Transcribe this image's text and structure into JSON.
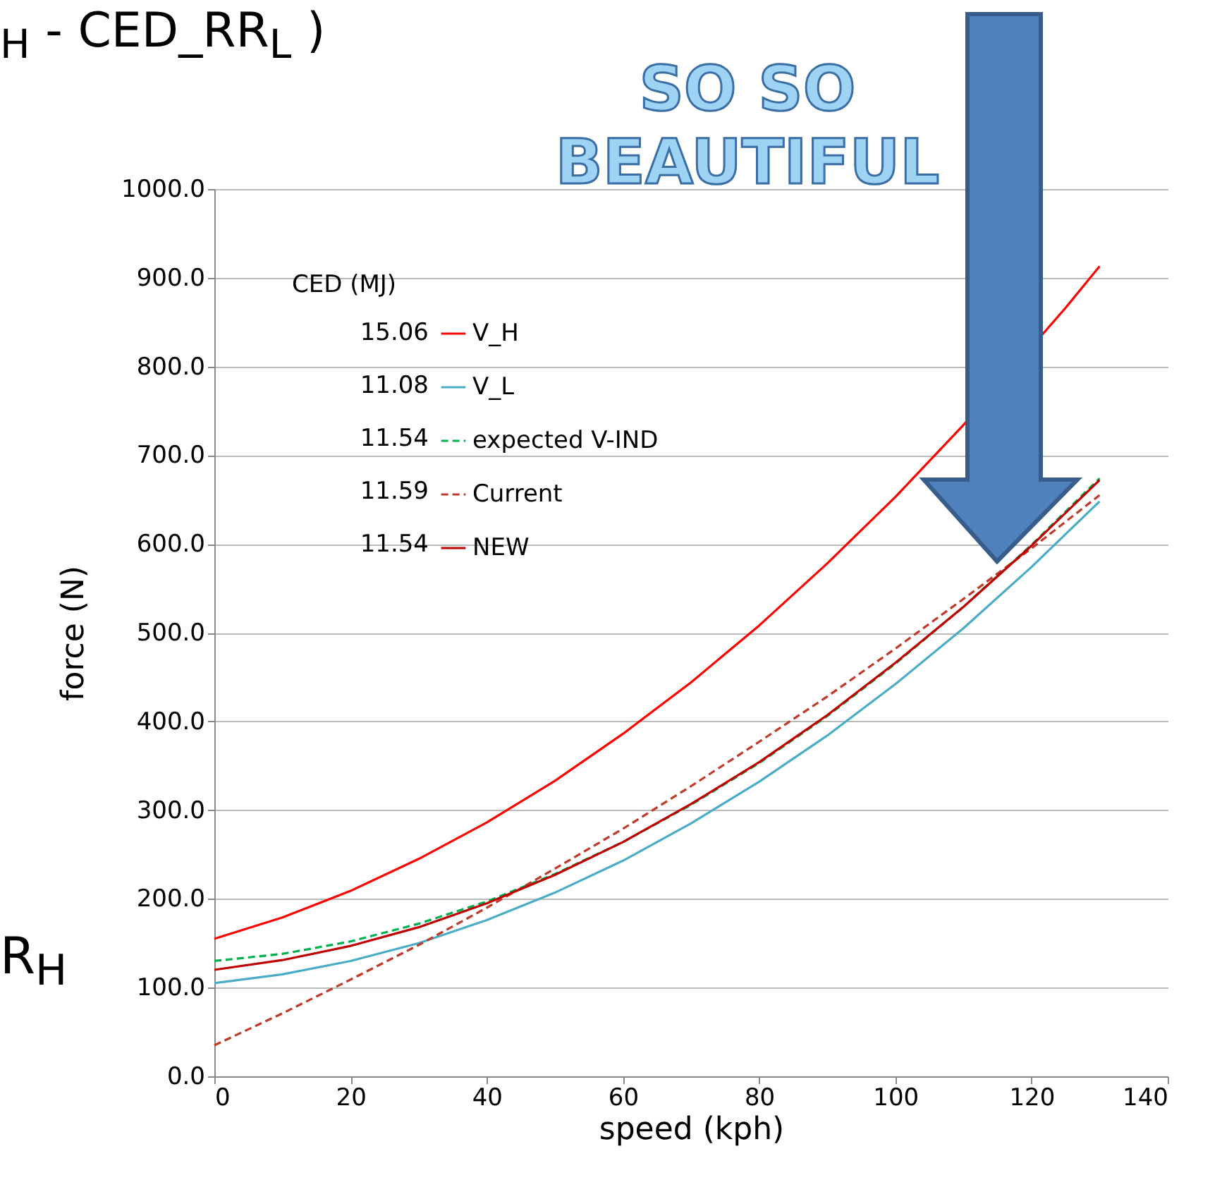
{
  "chart_data": {
    "type": "line",
    "title": "$_{H}$ - CED_RR$_{L}$ )",
    "xlabel": "speed (kph)",
    "ylabel": "force (N)",
    "legend_title": "CED (MJ)",
    "x": [
      0,
      10,
      20,
      30,
      40,
      50,
      60,
      70,
      80,
      90,
      100,
      110,
      120,
      130
    ],
    "series": [
      {
        "name": "V_H",
        "color": "#ff0000",
        "line_style": "solid",
        "x": [
          0,
          10,
          20,
          30,
          40,
          50,
          60,
          70,
          80,
          90,
          100,
          110,
          125,
          130
        ],
        "values": [
          155,
          179,
          209,
          245,
          286,
          333,
          386,
          444,
          508,
          578,
          653,
          734,
          866,
          913
        ]
      },
      {
        "name": "V_L",
        "color": "#4bacc6",
        "line_style": "solid",
        "values": [
          105,
          115,
          130,
          150,
          176,
          207,
          243,
          285,
          332,
          384,
          442,
          505,
          574,
          648
        ]
      },
      {
        "name": "expected V-IND",
        "color": "#00b050",
        "line_style": "dashed",
        "values": [
          130,
          138,
          152,
          172,
          197,
          228,
          264,
          306,
          353,
          406,
          465,
          529,
          599,
          674
        ]
      },
      {
        "name": "Current",
        "color": "#c0392b",
        "line_style": "dashed",
        "values": [
          35,
          71,
          109,
          148,
          190,
          234,
          279,
          327,
          377,
          428,
          482,
          538,
          595,
          655
        ]
      },
      {
        "name": "NEW",
        "color": "#c00000",
        "line_style": "solid",
        "values": [
          120,
          131,
          147,
          168,
          195,
          227,
          264,
          307,
          354,
          407,
          466,
          529,
          598,
          672
        ]
      }
    ],
    "annotations": [
      "15.06",
      "11.08",
      "11.54",
      "11.59",
      "11.54",
      "SO SO BEAUTIFUL",
      "R$_{H}$"
    ],
    "xlim": [
      0,
      140
    ],
    "xticks": [
      0,
      20,
      40,
      60,
      80,
      100,
      120,
      140
    ],
    "ylim": [
      0,
      1000
    ],
    "yticks": [
      {
        "value": 0,
        "label": "0.0"
      },
      {
        "value": 100,
        "label": "100.0"
      },
      {
        "value": 200,
        "label": "200.0"
      },
      {
        "value": 300,
        "label": "300.0"
      },
      {
        "value": 400,
        "label": "400.0"
      },
      {
        "value": 500,
        "label": "500.0"
      },
      {
        "value": 600,
        "label": "600.0"
      },
      {
        "value": 700,
        "label": "700.0"
      },
      {
        "value": 800,
        "label": "800.0"
      },
      {
        "value": 900,
        "label": "900.0"
      },
      {
        "value": 1000,
        "label": "1000.0"
      }
    ],
    "grid": "y",
    "legend": "top left"
  }
}
